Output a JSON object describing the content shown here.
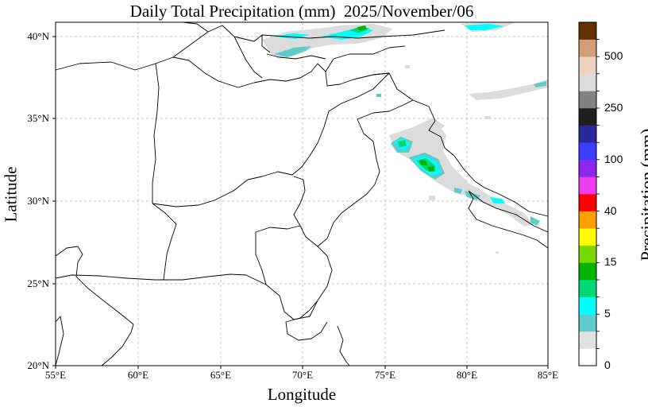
{
  "title": "Daily Total Precipitation (mm)  2025/November/06",
  "xlabel": "Longitude",
  "ylabel": "Latitude",
  "colorbar": {
    "label": "Precipitation (mm)",
    "tick_labels": [
      "0",
      "5",
      "15",
      "40",
      "100",
      "250",
      "500"
    ],
    "colors": [
      "#ffffff",
      "#e1e1e1",
      "#5fcccc",
      "#00ffff",
      "#00d878",
      "#00b400",
      "#78d800",
      "#ffff00",
      "#ffa000",
      "#ff0000",
      "#f03cf0",
      "#8c28f0",
      "#3c3cff",
      "#28289a",
      "#1e1e1e",
      "#828282",
      "#dcdcdc",
      "#f0d2be",
      "#d2a078",
      "#643200"
    ]
  },
  "axes": {
    "lon_range": [
      55,
      85
    ],
    "lat_range": [
      20,
      41
    ],
    "lon_ticks": [
      "55°E",
      "60°E",
      "65°E",
      "70°E",
      "75°E",
      "80°E",
      "85°E"
    ],
    "lat_ticks": [
      "20°N",
      "25°N",
      "30°N",
      "35°N",
      "40°N"
    ],
    "grid": true
  },
  "map_type": "precipitation-contour-map",
  "region": "Pakistan and surrounding region"
}
